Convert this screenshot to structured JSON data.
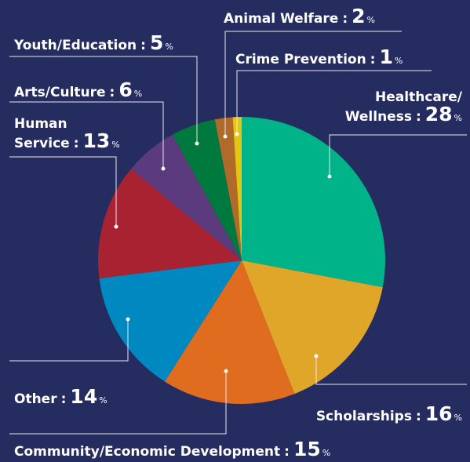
{
  "chart_data": {
    "type": "pie",
    "categories": [
      "Healthcare/\nWellness",
      "Scholarships",
      "Community/Economic Development",
      "Other",
      "Human\nService",
      "Arts/Culture",
      "Youth/Education",
      "Animal Welfare",
      "Crime Prevention"
    ],
    "values": [
      28,
      16,
      15,
      14,
      13,
      6,
      5,
      2,
      1
    ],
    "colors": [
      "#00b388",
      "#dfa62a",
      "#e06c1f",
      "#0088c0",
      "#a82232",
      "#5b3a7e",
      "#00793f",
      "#b06a2a",
      "#e5c510"
    ],
    "label_separator": ":",
    "unit": "%"
  }
}
